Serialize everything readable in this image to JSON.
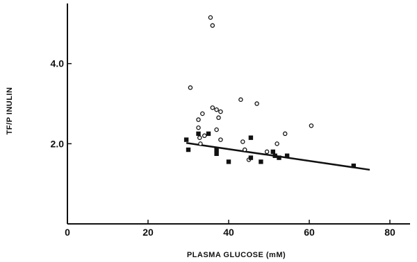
{
  "chart_data": {
    "type": "scatter",
    "title": "",
    "xlabel": "PLASMA GLUCOSE (mM)",
    "ylabel": "TF/P INULIN",
    "xlim": [
      0,
      85
    ],
    "ylim": [
      0,
      5.5
    ],
    "x_ticks": [
      0,
      20,
      40,
      60,
      80
    ],
    "x_tick_labels": [
      "0",
      "20",
      "40",
      "60",
      "80"
    ],
    "y_ticks": [
      2.0,
      4.0
    ],
    "y_tick_labels": [
      "2.0",
      "4.0"
    ],
    "grid": false,
    "legend": "none",
    "series": [
      {
        "marker": "open-circle",
        "x": [
          30.5,
          32.5,
          32.5,
          32.8,
          33,
          33.5,
          34,
          35.5,
          36,
          36,
          37,
          37,
          37.5,
          38,
          38,
          43,
          43.5,
          44,
          45,
          47,
          49.5,
          52,
          54,
          60.5
        ],
        "y": [
          3.4,
          2.6,
          2.4,
          2.15,
          2.0,
          2.75,
          2.2,
          5.15,
          4.95,
          2.9,
          2.85,
          2.35,
          2.65,
          2.8,
          2.1,
          3.1,
          2.05,
          1.85,
          1.6,
          3.0,
          1.8,
          2.0,
          2.25,
          2.45
        ]
      },
      {
        "marker": "filled-square",
        "x": [
          29.5,
          30,
          32.5,
          35,
          37,
          37,
          40,
          45.5,
          45.5,
          48,
          51,
          51.5,
          52.5,
          54.5,
          71
        ],
        "y": [
          2.1,
          1.85,
          2.25,
          2.25,
          1.85,
          1.75,
          1.55,
          2.15,
          1.65,
          1.55,
          1.8,
          1.7,
          1.65,
          1.7,
          1.45
        ]
      }
    ],
    "regression_line": {
      "x": [
        29.5,
        75
      ],
      "y": [
        2.02,
        1.35
      ]
    }
  }
}
